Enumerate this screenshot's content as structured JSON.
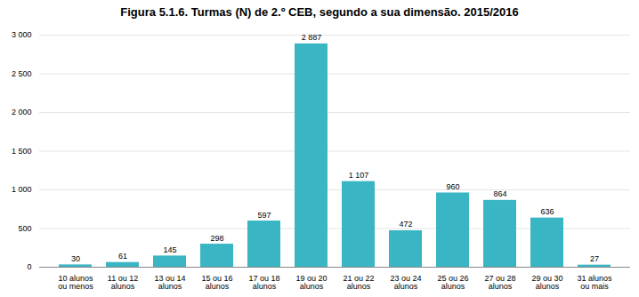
{
  "chart_data": {
    "type": "bar",
    "title": "Figura 5.1.6. Turmas (N) de 2.º CEB, segundo a sua dimensão. 2015/2016",
    "categories": [
      "10 alunos\nou menos",
      "11 ou 12\nalunos",
      "13 ou 14\nalunos",
      "15 ou 16\nalunos",
      "17 ou 18\nalunos",
      "19 ou 20\nalunos",
      "21 ou 22\nalunos",
      "23 ou 24\nalunos",
      "25 ou 26\nalunos",
      "27 ou 28\nalunos",
      "29 ou 30\nalunos",
      "31 alunos\nou mais"
    ],
    "values": [
      30,
      61,
      145,
      298,
      597,
      2887,
      1107,
      472,
      960,
      864,
      636,
      27
    ],
    "value_labels": [
      "30",
      "61",
      "145",
      "298",
      "597",
      "2 887",
      "1 107",
      "472",
      "960",
      "864",
      "636",
      "27"
    ],
    "data_labels": true,
    "color": "#3ab5c3",
    "ylim": [
      0,
      3000
    ],
    "yticks": [
      0,
      500,
      {
        "value": 1000,
        "label": "1 000"
      },
      {
        "value": 1500,
        "label": "1 500"
      },
      {
        "value": 2000,
        "label": "2 000"
      },
      {
        "value": 2500,
        "label": "2 500"
      },
      {
        "value": 3000,
        "label": "3 000"
      }
    ],
    "grid": true
  }
}
